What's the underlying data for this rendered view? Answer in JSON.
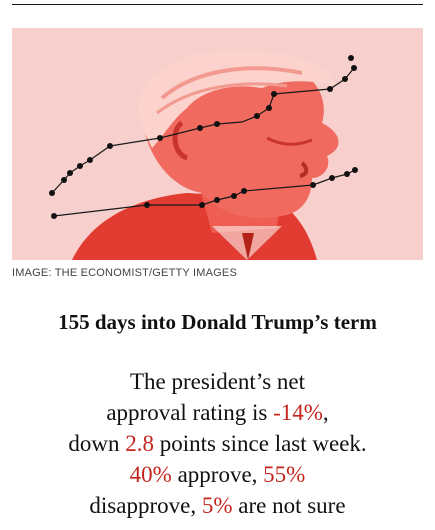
{
  "article": {
    "image_credit": "IMAGE: THE ECONOMIST/GETTY IMAGES",
    "headline": "155 days into Donald Trump’s term",
    "summary": {
      "l1": "The president’s net",
      "l2a": "approval rating is ",
      "net_rating": "-14%",
      "l2b": ",",
      "l3a": "down ",
      "change_points": "2.8",
      "l3b": " points since last week.",
      "approve_pct": "40%",
      "l4a": " approve, ",
      "disapprove_pct": "55%",
      "l5a": "disapprove, ",
      "unsure_pct": "5%",
      "l5b": " are not sure"
    }
  },
  "colors": {
    "accent_red": "#c4261d",
    "image_tint": "#f7cfcc",
    "portrait_red": "#e8463c"
  }
}
